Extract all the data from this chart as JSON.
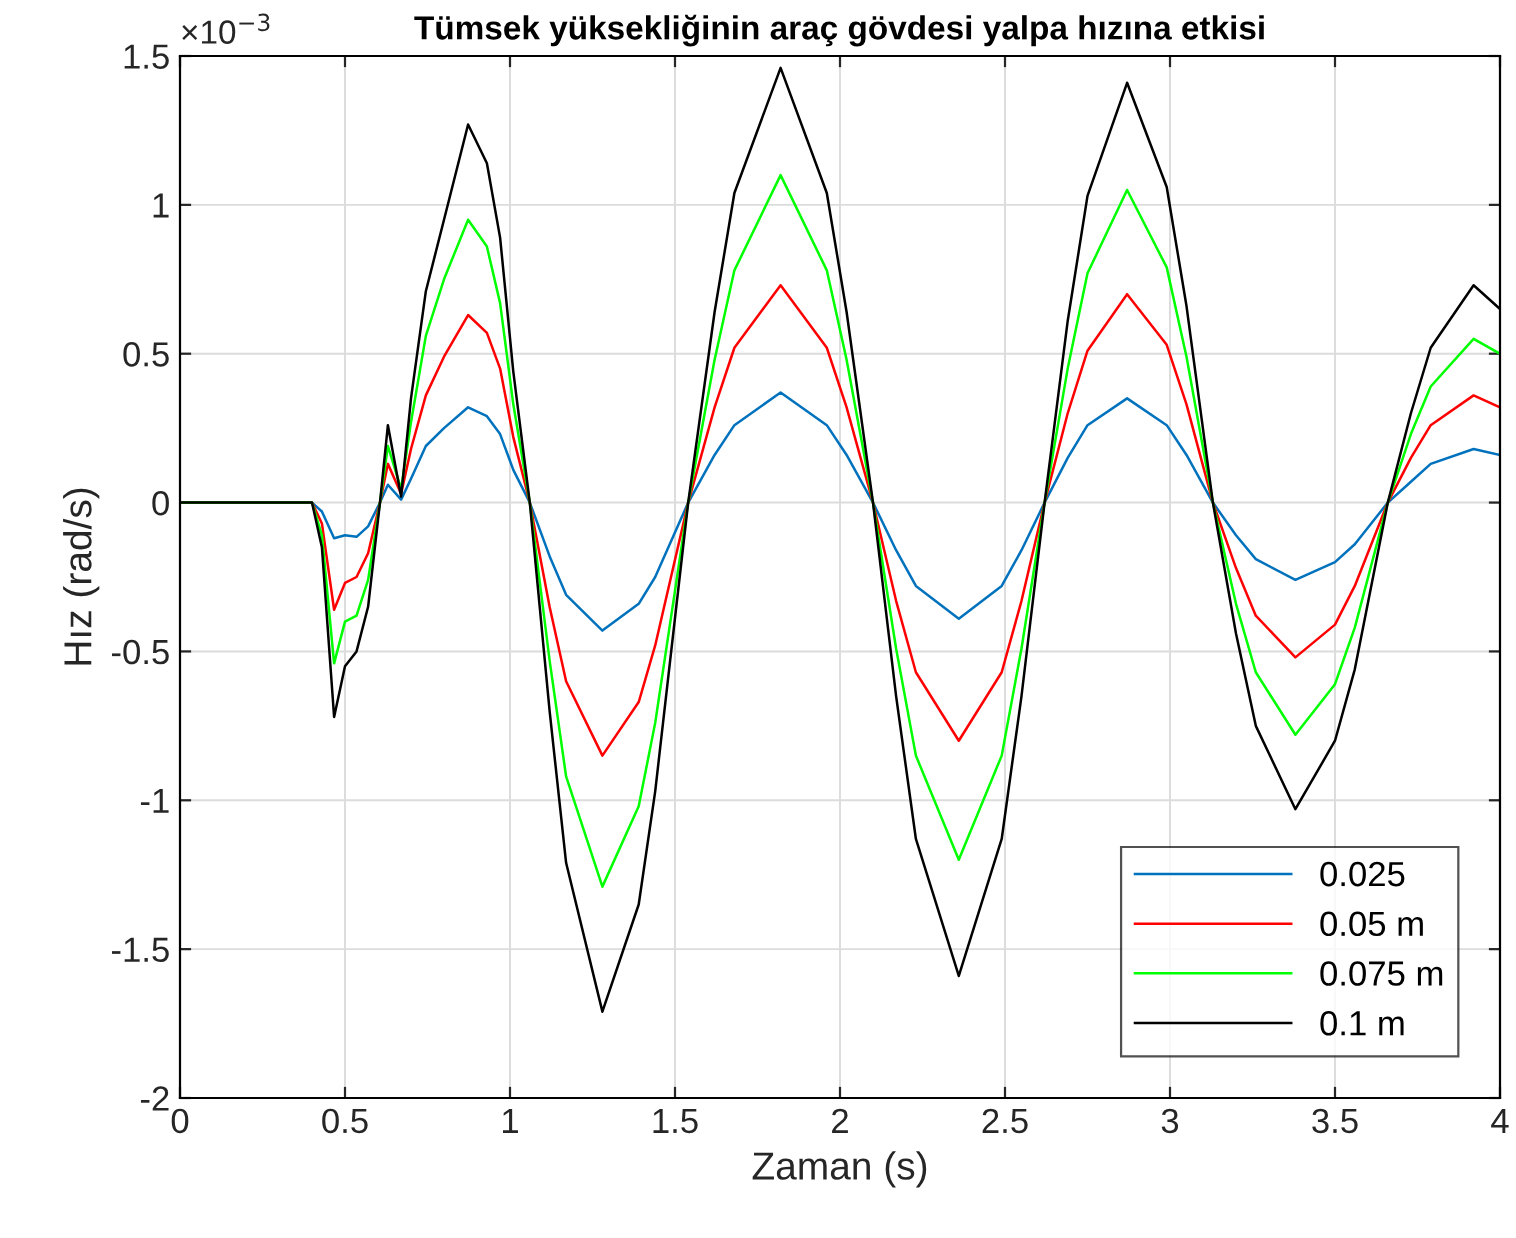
{
  "chart_data": {
    "type": "line",
    "title": "Tümsek yüksekliğinin araç gövdesi yalpa hızına etkisi",
    "xlabel": "Zaman (s)",
    "ylabel": "Hız (rad/s)",
    "annotations": [
      "×10$^{−3}$"
    ],
    "x": [
      0,
      0.4,
      0.43,
      0.467,
      0.5,
      0.535,
      0.57,
      0.606,
      0.63,
      0.67,
      0.7,
      0.745,
      0.8,
      0.873,
      0.93,
      0.97,
      1.01,
      1.06,
      1.12,
      1.17,
      1.28,
      1.39,
      1.44,
      1.54,
      1.62,
      1.68,
      1.82,
      1.96,
      2.02,
      2.1,
      2.17,
      2.23,
      2.36,
      2.49,
      2.55,
      2.62,
      2.69,
      2.75,
      2.87,
      2.99,
      3.05,
      3.13,
      3.2,
      3.26,
      3.38,
      3.5,
      3.56,
      3.66,
      3.73,
      3.79,
      3.92,
      4.0
    ],
    "series": [
      {
        "name": "0.025",
        "color": "#0072bd",
        "values": [
          0,
          0,
          -0.03,
          -0.12,
          -0.11,
          -0.115,
          -0.08,
          0,
          0.06,
          0.01,
          0.08,
          0.19,
          0.25,
          0.32,
          0.29,
          0.23,
          0.11,
          0,
          -0.18,
          -0.31,
          -0.43,
          -0.34,
          -0.25,
          0,
          0.16,
          0.26,
          0.37,
          0.26,
          0.16,
          0,
          -0.16,
          -0.28,
          -0.39,
          -0.28,
          -0.16,
          0,
          0.15,
          0.26,
          0.35,
          0.26,
          0.16,
          0,
          -0.11,
          -0.19,
          -0.26,
          -0.2,
          -0.14,
          0,
          0.07,
          0.13,
          0.18,
          0.16
        ]
      },
      {
        "name": "0.05 m",
        "color": "#ff0000",
        "values": [
          0,
          0,
          -0.07,
          -0.36,
          -0.27,
          -0.25,
          -0.17,
          0,
          0.13,
          0.03,
          0.18,
          0.36,
          0.49,
          0.63,
          0.57,
          0.45,
          0.22,
          0,
          -0.35,
          -0.6,
          -0.85,
          -0.67,
          -0.48,
          0,
          0.32,
          0.52,
          0.73,
          0.52,
          0.32,
          0,
          -0.33,
          -0.57,
          -0.8,
          -0.57,
          -0.33,
          0,
          0.3,
          0.51,
          0.7,
          0.53,
          0.33,
          0,
          -0.22,
          -0.38,
          -0.52,
          -0.41,
          -0.28,
          0,
          0.15,
          0.26,
          0.36,
          0.32
        ]
      },
      {
        "name": "0.075 m",
        "color": "#00ff00",
        "values": [
          0,
          0,
          -0.11,
          -0.54,
          -0.4,
          -0.38,
          -0.26,
          0,
          0.19,
          0.045,
          0.27,
          0.56,
          0.75,
          0.95,
          0.86,
          0.67,
          0.33,
          0,
          -0.53,
          -0.92,
          -1.29,
          -1.02,
          -0.74,
          0,
          0.48,
          0.78,
          1.1,
          0.78,
          0.48,
          0,
          -0.49,
          -0.85,
          -1.2,
          -0.85,
          -0.49,
          0,
          0.45,
          0.77,
          1.05,
          0.79,
          0.49,
          0,
          -0.34,
          -0.57,
          -0.78,
          -0.61,
          -0.42,
          0,
          0.23,
          0.39,
          0.55,
          0.5
        ]
      },
      {
        "name": "0.1 m",
        "color": "#000000",
        "values": [
          0,
          0,
          -0.15,
          -0.72,
          -0.55,
          -0.5,
          -0.35,
          0,
          0.26,
          0.02,
          0.35,
          0.71,
          0.95,
          1.27,
          1.14,
          0.89,
          0.44,
          0,
          -0.7,
          -1.21,
          -1.71,
          -1.35,
          -0.97,
          0,
          0.64,
          1.04,
          1.46,
          1.04,
          0.64,
          0,
          -0.65,
          -1.13,
          -1.59,
          -1.13,
          -0.65,
          0,
          0.61,
          1.03,
          1.41,
          1.06,
          0.66,
          0,
          -0.44,
          -0.75,
          -1.03,
          -0.8,
          -0.56,
          0,
          0.3,
          0.52,
          0.73,
          0.65
        ]
      }
    ],
    "xlim": [
      0,
      4
    ],
    "xticks": [
      0,
      0.5,
      1,
      1.5,
      2,
      2.5,
      3,
      3.5,
      4
    ],
    "ylim": [
      -2,
      1.5
    ],
    "yticks": [
      -2,
      -1.5,
      -1,
      -0.5,
      0,
      0.5,
      1,
      1.5
    ],
    "grid": true,
    "legend": "bottom right",
    "line_style": "solid"
  }
}
